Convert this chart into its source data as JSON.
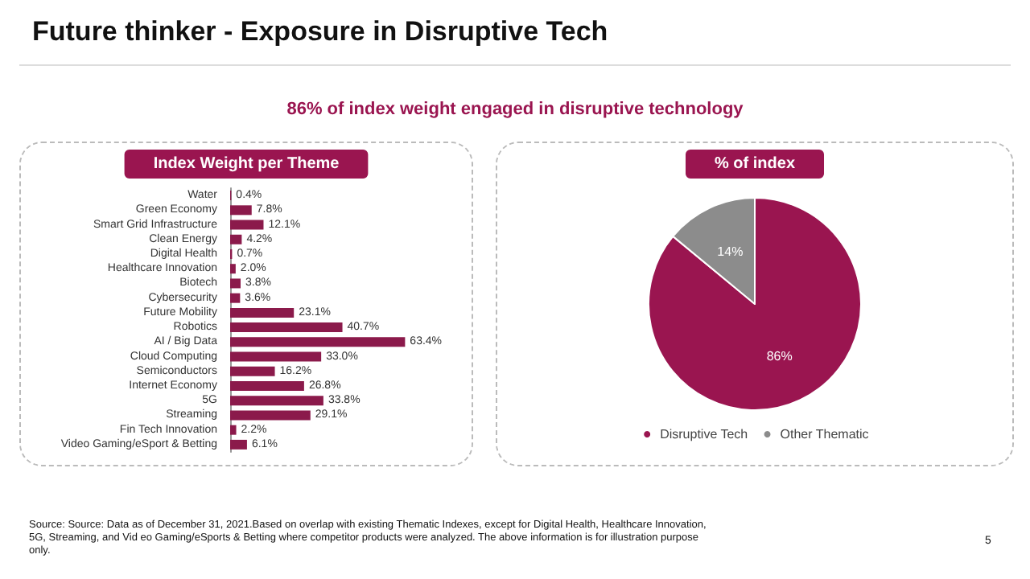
{
  "chart_data": [
    {
      "type": "bar",
      "orientation": "horizontal",
      "title": "Index Weight per Theme",
      "color": "#8b1a4b",
      "categories": [
        "Water",
        "Green Economy",
        "Smart Grid Infrastructure",
        "Clean Energy",
        "Digital Health",
        "Healthcare Innovation",
        "Biotech",
        "Cybersecurity",
        "Future Mobility",
        "Robotics",
        "AI / Big Data",
        "Cloud Computing",
        "Semiconductors",
        "Internet Economy",
        "5G",
        "Streaming",
        "Fin Tech Innovation",
        "Video Gaming/eSport & Betting"
      ],
      "values": [
        0.4,
        7.8,
        12.1,
        4.2,
        0.7,
        2.0,
        3.8,
        3.6,
        23.1,
        40.7,
        63.4,
        33.0,
        16.2,
        26.8,
        33.8,
        29.1,
        2.2,
        6.1
      ],
      "value_labels": [
        "0.4%",
        "7.8%",
        "12.1%",
        "4.2%",
        "0.7%",
        "2.0%",
        "3.8%",
        "3.6%",
        "23.1%",
        "40.7%",
        "63.4%",
        "33.0%",
        "16.2%",
        "26.8%",
        "33.8%",
        "29.1%",
        "2.2%",
        "6.1%"
      ],
      "annotations": [
        "Future thinker - Exposure in Disruptive Tech",
        "86% of index weight engaged in disruptive technology"
      ]
    },
    {
      "type": "pie",
      "title": "% of index",
      "legend": "bottom",
      "categories": [
        "Disruptive Tech",
        "Other Thematic"
      ],
      "values": [
        86,
        14
      ],
      "colors": [
        "#9a1550",
        "#8c8c8c"
      ],
      "value_labels": [
        "86%",
        "14%"
      ],
      "annotations": [
        "Source: Source: Data as of December 31, 2021.Based on overlap with existing Thematic Indexes, except for Digital Health, Healthcare Innovation, 5G, Streaming, and Vid eo Gaming/eSports & Betting where competitor products were analyzed. The above information is for illustration purpose only.",
        "5"
      ]
    }
  ]
}
